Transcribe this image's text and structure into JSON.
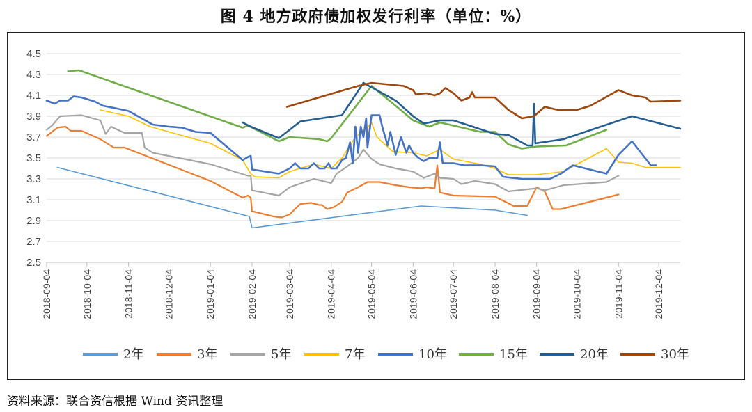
{
  "title": "图 4 地方政府债加权发行利率（单位：%）",
  "source": "资料来源：联合资信根据 Wind 资讯整理",
  "chart_data": {
    "type": "line",
    "ylim": [
      2.5,
      4.5
    ],
    "yticks": [
      "2.5",
      "2.7",
      "2.9",
      "3.1",
      "3.3",
      "3.5",
      "3.7",
      "3.9",
      "4.1",
      "4.3",
      "4.5"
    ],
    "xticks": [
      "2018-09-04",
      "2018-10-04",
      "2018-11-04",
      "2018-12-04",
      "2019-01-04",
      "2019-02-04",
      "2019-03-04",
      "2019-04-04",
      "2019-05-04",
      "2019-06-04",
      "2019-07-04",
      "2019-08-04",
      "2019-09-04",
      "2019-10-04",
      "2019-11-04",
      "2019-12-04"
    ],
    "xlim": [
      "2018-09-04",
      "2019-12-20"
    ],
    "grid": "horizontal",
    "legend_position": "bottom",
    "series": [
      {
        "name": "2年",
        "color": "#5B9BD5",
        "width": 1.6,
        "points": [
          [
            "2018-09-12",
            3.41
          ],
          [
            "2019-02-02",
            2.94
          ],
          [
            "2019-02-04",
            2.83
          ],
          [
            "2019-06-10",
            3.04
          ],
          [
            "2019-08-04",
            3.0
          ],
          [
            "2019-08-28",
            2.95
          ]
        ]
      },
      {
        "name": "3年",
        "color": "#ED7D31",
        "width": 2.2,
        "points": [
          [
            "2018-09-04",
            3.71
          ],
          [
            "2018-09-08",
            3.75
          ],
          [
            "2018-09-12",
            3.79
          ],
          [
            "2018-09-18",
            3.8
          ],
          [
            "2018-09-22",
            3.76
          ],
          [
            "2018-09-30",
            3.76
          ],
          [
            "2018-10-14",
            3.68
          ],
          [
            "2018-10-24",
            3.6
          ],
          [
            "2018-11-01",
            3.6
          ],
          [
            "2019-01-04",
            3.28
          ],
          [
            "2019-01-28",
            3.12
          ],
          [
            "2019-02-01",
            3.14
          ],
          [
            "2019-02-03",
            3.12
          ],
          [
            "2019-02-04",
            2.99
          ],
          [
            "2019-02-20",
            2.94
          ],
          [
            "2019-02-26",
            2.93
          ],
          [
            "2019-03-04",
            2.96
          ],
          [
            "2019-03-12",
            3.06
          ],
          [
            "2019-03-20",
            3.07
          ],
          [
            "2019-03-26",
            3.05
          ],
          [
            "2019-03-28",
            3.05
          ],
          [
            "2019-04-01",
            3.01
          ],
          [
            "2019-04-06",
            3.03
          ],
          [
            "2019-04-12",
            3.08
          ],
          [
            "2019-04-16",
            3.17
          ],
          [
            "2019-04-24",
            3.22
          ],
          [
            "2019-05-01",
            3.27
          ],
          [
            "2019-05-10",
            3.27
          ],
          [
            "2019-05-22",
            3.24
          ],
          [
            "2019-06-01",
            3.22
          ],
          [
            "2019-06-10",
            3.21
          ],
          [
            "2019-06-14",
            3.22
          ],
          [
            "2019-06-20",
            3.21
          ],
          [
            "2019-06-22",
            3.43
          ],
          [
            "2019-06-24",
            3.17
          ],
          [
            "2019-07-04",
            3.14
          ],
          [
            "2019-08-04",
            3.13
          ],
          [
            "2019-08-18",
            3.04
          ],
          [
            "2019-08-28",
            3.04
          ],
          [
            "2019-09-04",
            3.22
          ],
          [
            "2019-09-10",
            3.18
          ],
          [
            "2019-09-16",
            3.01
          ],
          [
            "2019-09-22",
            3.01
          ],
          [
            "2019-11-04",
            3.15
          ]
        ]
      },
      {
        "name": "5年",
        "color": "#A5A5A5",
        "width": 2.2,
        "points": [
          [
            "2018-09-04",
            3.77
          ],
          [
            "2018-09-08",
            3.81
          ],
          [
            "2018-09-14",
            3.9
          ],
          [
            "2018-09-30",
            3.91
          ],
          [
            "2018-10-14",
            3.86
          ],
          [
            "2018-10-18",
            3.73
          ],
          [
            "2018-10-22",
            3.8
          ],
          [
            "2018-11-01",
            3.74
          ],
          [
            "2018-11-14",
            3.74
          ],
          [
            "2018-11-16",
            3.6
          ],
          [
            "2018-11-22",
            3.55
          ],
          [
            "2019-01-04",
            3.44
          ],
          [
            "2019-02-01",
            3.33
          ],
          [
            "2019-02-03",
            3.33
          ],
          [
            "2019-02-04",
            3.19
          ],
          [
            "2019-02-24",
            3.14
          ],
          [
            "2019-03-04",
            3.22
          ],
          [
            "2019-03-22",
            3.3
          ],
          [
            "2019-04-04",
            3.26
          ],
          [
            "2019-04-08",
            3.35
          ],
          [
            "2019-04-16",
            3.42
          ],
          [
            "2019-04-24",
            3.5
          ],
          [
            "2019-04-28",
            3.58
          ],
          [
            "2019-05-04",
            3.49
          ],
          [
            "2019-05-10",
            3.44
          ],
          [
            "2019-05-22",
            3.4
          ],
          [
            "2019-06-04",
            3.37
          ],
          [
            "2019-06-12",
            3.31
          ],
          [
            "2019-06-20",
            3.35
          ],
          [
            "2019-06-24",
            3.31
          ],
          [
            "2019-07-04",
            3.3
          ],
          [
            "2019-07-10",
            3.25
          ],
          [
            "2019-07-20",
            3.28
          ],
          [
            "2019-08-04",
            3.25
          ],
          [
            "2019-08-14",
            3.18
          ],
          [
            "2019-09-04",
            3.21
          ],
          [
            "2019-09-10",
            3.19
          ],
          [
            "2019-09-24",
            3.24
          ],
          [
            "2019-10-26",
            3.27
          ],
          [
            "2019-11-04",
            3.33
          ]
        ]
      },
      {
        "name": "7年",
        "color": "#FFC000",
        "width": 1.6,
        "points": [
          [
            "2018-10-14",
            3.96
          ],
          [
            "2018-11-04",
            3.9
          ],
          [
            "2018-11-20",
            3.8
          ],
          [
            "2019-01-04",
            3.64
          ],
          [
            "2019-01-28",
            3.48
          ],
          [
            "2019-02-03",
            3.35
          ],
          [
            "2019-02-06",
            3.32
          ],
          [
            "2019-02-24",
            3.31
          ],
          [
            "2019-03-04",
            3.37
          ],
          [
            "2019-03-22",
            3.44
          ],
          [
            "2019-04-04",
            3.4
          ],
          [
            "2019-04-12",
            3.5
          ],
          [
            "2019-04-22",
            3.7
          ],
          [
            "2019-05-01",
            3.79
          ],
          [
            "2019-05-04",
            3.84
          ],
          [
            "2019-05-08",
            3.7
          ],
          [
            "2019-05-20",
            3.56
          ],
          [
            "2019-06-04",
            3.55
          ],
          [
            "2019-06-14",
            3.52
          ],
          [
            "2019-06-24",
            3.58
          ],
          [
            "2019-07-04",
            3.49
          ],
          [
            "2019-07-24",
            3.44
          ],
          [
            "2019-08-04",
            3.4
          ],
          [
            "2019-08-14",
            3.34
          ],
          [
            "2019-08-28",
            3.34
          ],
          [
            "2019-09-04",
            3.34
          ],
          [
            "2019-09-24",
            3.37
          ],
          [
            "2019-10-26",
            3.59
          ],
          [
            "2019-11-04",
            3.46
          ],
          [
            "2019-11-14",
            3.45
          ],
          [
            "2019-11-24",
            3.41
          ],
          [
            "2019-12-20",
            3.41
          ]
        ]
      },
      {
        "name": "10年",
        "color": "#4472C4",
        "width": 2.6,
        "points": [
          [
            "2018-09-04",
            4.05
          ],
          [
            "2018-09-10",
            4.02
          ],
          [
            "2018-09-14",
            4.05
          ],
          [
            "2018-09-20",
            4.05
          ],
          [
            "2018-09-24",
            4.09
          ],
          [
            "2018-09-30",
            4.08
          ],
          [
            "2018-10-10",
            4.04
          ],
          [
            "2018-10-16",
            4.0
          ],
          [
            "2018-10-24",
            3.98
          ],
          [
            "2018-11-04",
            3.95
          ],
          [
            "2018-11-22",
            3.82
          ],
          [
            "2018-12-04",
            3.8
          ],
          [
            "2018-12-14",
            3.79
          ],
          [
            "2018-12-24",
            3.75
          ],
          [
            "2019-01-04",
            3.74
          ],
          [
            "2019-01-28",
            3.48
          ],
          [
            "2019-02-01",
            3.51
          ],
          [
            "2019-02-03",
            3.52
          ],
          [
            "2019-02-04",
            3.39
          ],
          [
            "2019-02-24",
            3.35
          ],
          [
            "2019-03-04",
            3.4
          ],
          [
            "2019-03-08",
            3.45
          ],
          [
            "2019-03-12",
            3.4
          ],
          [
            "2019-03-18",
            3.4
          ],
          [
            "2019-03-22",
            3.45
          ],
          [
            "2019-03-26",
            3.4
          ],
          [
            "2019-03-30",
            3.4
          ],
          [
            "2019-04-02",
            3.45
          ],
          [
            "2019-04-04",
            3.4
          ],
          [
            "2019-04-08",
            3.4
          ],
          [
            "2019-04-12",
            3.48
          ],
          [
            "2019-04-15",
            3.5
          ],
          [
            "2019-04-18",
            3.65
          ],
          [
            "2019-04-20",
            3.45
          ],
          [
            "2019-04-22",
            3.8
          ],
          [
            "2019-04-24",
            3.55
          ],
          [
            "2019-04-26",
            3.8
          ],
          [
            "2019-04-28",
            3.7
          ],
          [
            "2019-04-30",
            3.88
          ],
          [
            "2019-05-01",
            3.6
          ],
          [
            "2019-05-04",
            3.91
          ],
          [
            "2019-05-10",
            3.91
          ],
          [
            "2019-05-12",
            3.8
          ],
          [
            "2019-05-16",
            3.62
          ],
          [
            "2019-05-18",
            3.75
          ],
          [
            "2019-05-22",
            3.53
          ],
          [
            "2019-05-26",
            3.7
          ],
          [
            "2019-05-30",
            3.55
          ],
          [
            "2019-06-01",
            3.62
          ],
          [
            "2019-06-04",
            3.55
          ],
          [
            "2019-06-08",
            3.5
          ],
          [
            "2019-06-12",
            3.47
          ],
          [
            "2019-06-16",
            3.5
          ],
          [
            "2019-06-22",
            3.5
          ],
          [
            "2019-06-24",
            3.65
          ],
          [
            "2019-06-26",
            3.45
          ],
          [
            "2019-07-04",
            3.45
          ],
          [
            "2019-07-12",
            3.43
          ],
          [
            "2019-07-24",
            3.43
          ],
          [
            "2019-08-04",
            3.42
          ],
          [
            "2019-08-10",
            3.32
          ],
          [
            "2019-08-24",
            3.3
          ],
          [
            "2019-09-04",
            3.3
          ],
          [
            "2019-09-14",
            3.3
          ],
          [
            "2019-09-22",
            3.35
          ],
          [
            "2019-10-01",
            3.43
          ],
          [
            "2019-10-26",
            3.35
          ],
          [
            "2019-11-04",
            3.53
          ],
          [
            "2019-11-14",
            3.66
          ],
          [
            "2019-11-28",
            3.43
          ],
          [
            "2019-12-02",
            3.43
          ]
        ]
      },
      {
        "name": "15年",
        "color": "#70AD47",
        "width": 2.6,
        "points": [
          [
            "2018-09-20",
            4.33
          ],
          [
            "2018-09-28",
            4.34
          ],
          [
            "2019-01-28",
            3.79
          ],
          [
            "2019-02-01",
            3.81
          ],
          [
            "2019-02-24",
            3.66
          ],
          [
            "2019-03-04",
            3.7
          ],
          [
            "2019-03-26",
            3.68
          ],
          [
            "2019-04-01",
            3.66
          ],
          [
            "2019-04-04",
            3.69
          ],
          [
            "2019-05-04",
            4.19
          ],
          [
            "2019-05-22",
            4.0
          ],
          [
            "2019-06-04",
            3.86
          ],
          [
            "2019-06-16",
            3.8
          ],
          [
            "2019-06-24",
            3.84
          ],
          [
            "2019-07-24",
            3.75
          ],
          [
            "2019-08-04",
            3.75
          ],
          [
            "2019-08-14",
            3.63
          ],
          [
            "2019-08-24",
            3.59
          ],
          [
            "2019-09-04",
            3.61
          ],
          [
            "2019-09-26",
            3.62
          ],
          [
            "2019-10-26",
            3.77
          ]
        ]
      },
      {
        "name": "20年",
        "color": "#255E91",
        "width": 2.6,
        "points": [
          [
            "2019-01-28",
            3.84
          ],
          [
            "2019-02-03",
            3.8
          ],
          [
            "2019-02-24",
            3.69
          ],
          [
            "2019-03-12",
            3.85
          ],
          [
            "2019-04-12",
            3.91
          ],
          [
            "2019-04-28",
            4.22
          ],
          [
            "2019-05-22",
            4.05
          ],
          [
            "2019-06-04",
            3.9
          ],
          [
            "2019-06-12",
            3.83
          ],
          [
            "2019-06-24",
            3.86
          ],
          [
            "2019-07-04",
            3.86
          ],
          [
            "2019-08-04",
            3.73
          ],
          [
            "2019-08-14",
            3.72
          ],
          [
            "2019-08-28",
            3.62
          ],
          [
            "2019-09-01",
            3.62
          ],
          [
            "2019-09-02",
            4.02
          ],
          [
            "2019-09-03",
            3.64
          ],
          [
            "2019-09-24",
            3.68
          ],
          [
            "2019-11-14",
            3.9
          ],
          [
            "2019-12-20",
            3.78
          ]
        ]
      },
      {
        "name": "30年",
        "color": "#9E480E",
        "width": 2.6,
        "points": [
          [
            "2019-03-02",
            3.99
          ],
          [
            "2019-04-16",
            4.16
          ],
          [
            "2019-04-24",
            4.19
          ],
          [
            "2019-05-04",
            4.22
          ],
          [
            "2019-05-28",
            4.19
          ],
          [
            "2019-06-04",
            4.15
          ],
          [
            "2019-06-06",
            4.11
          ],
          [
            "2019-06-14",
            4.12
          ],
          [
            "2019-06-20",
            4.1
          ],
          [
            "2019-06-24",
            4.12
          ],
          [
            "2019-06-28",
            4.17
          ],
          [
            "2019-07-04",
            4.12
          ],
          [
            "2019-07-10",
            4.05
          ],
          [
            "2019-07-16",
            4.08
          ],
          [
            "2019-07-18",
            4.13
          ],
          [
            "2019-07-20",
            4.08
          ],
          [
            "2019-08-04",
            4.08
          ],
          [
            "2019-08-14",
            3.96
          ],
          [
            "2019-08-24",
            3.88
          ],
          [
            "2019-09-02",
            3.9
          ],
          [
            "2019-09-10",
            3.99
          ],
          [
            "2019-09-20",
            3.96
          ],
          [
            "2019-10-04",
            3.96
          ],
          [
            "2019-10-14",
            4.0
          ],
          [
            "2019-11-04",
            4.15
          ],
          [
            "2019-11-14",
            4.1
          ],
          [
            "2019-11-24",
            4.08
          ],
          [
            "2019-11-28",
            4.04
          ],
          [
            "2019-12-20",
            4.05
          ]
        ]
      }
    ]
  }
}
